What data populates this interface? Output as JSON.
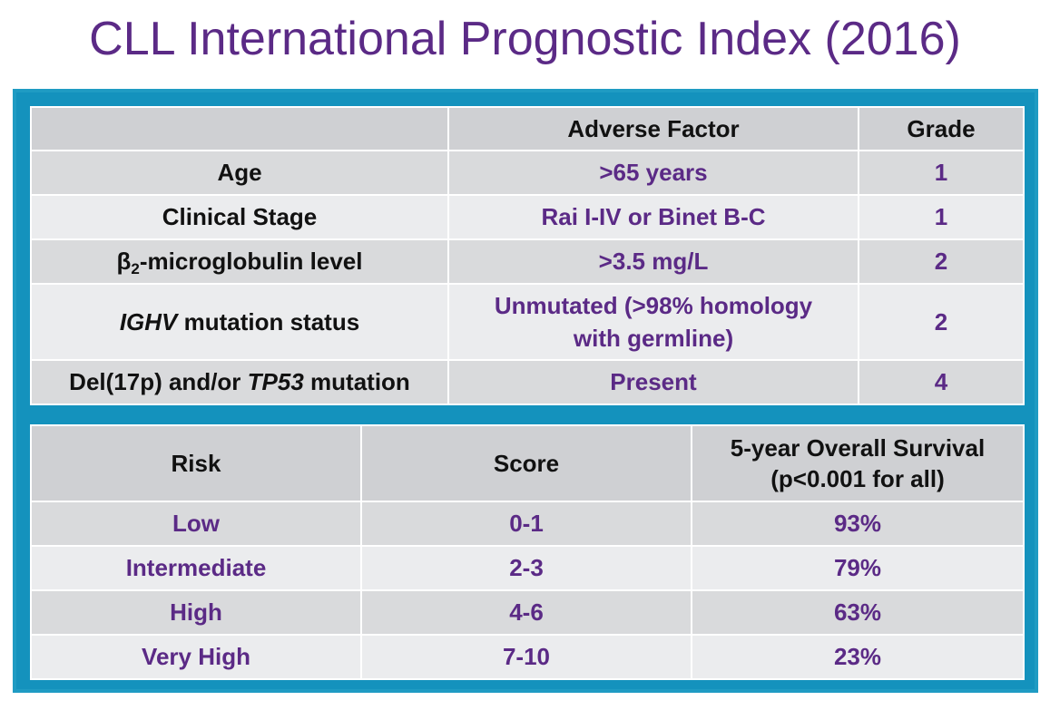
{
  "title": "CLL International Prognostic Index (2016)",
  "factors_table": {
    "headers": [
      "",
      "Adverse Factor",
      "Grade"
    ],
    "rows": [
      {
        "factor": "Age",
        "adverse": ">65 years",
        "grade": "1"
      },
      {
        "factor": "Clinical Stage",
        "adverse": "Rai I-IV or Binet B-C",
        "grade": "1"
      },
      {
        "factor_symbol": "β",
        "factor_sub": "2",
        "factor_rest": "-microglobulin level",
        "adverse": ">3.5 mg/L",
        "grade": "2"
      },
      {
        "factor_italic": "IGHV",
        "factor_rest": " mutation status",
        "adverse_line1": "Unmutated (>98% homology",
        "adverse_line2": "with germline)",
        "grade": "2"
      },
      {
        "factor_pre": "Del(17p) and/or ",
        "factor_italic": "TP53",
        "factor_rest": " mutation",
        "adverse": "Present",
        "grade": "4"
      }
    ]
  },
  "risk_table": {
    "headers": [
      "Risk",
      "Score",
      "5-year Overall Survival",
      "(p<0.001 for all)"
    ],
    "rows": [
      {
        "risk": "Low",
        "score": "0-1",
        "survival": "93%"
      },
      {
        "risk": "Intermediate",
        "score": "2-3",
        "survival": "79%"
      },
      {
        "risk": "High",
        "score": "4-6",
        "survival": "63%"
      },
      {
        "risk": "Very High",
        "score": "7-10",
        "survival": "23%"
      }
    ]
  },
  "colors": {
    "title": "#5b2a86",
    "value_text": "#5b2a86",
    "frame": "#1f9bc3",
    "header_bg": "#cfd0d3",
    "row_dark": "#d9dadc",
    "row_light": "#ebecee"
  }
}
